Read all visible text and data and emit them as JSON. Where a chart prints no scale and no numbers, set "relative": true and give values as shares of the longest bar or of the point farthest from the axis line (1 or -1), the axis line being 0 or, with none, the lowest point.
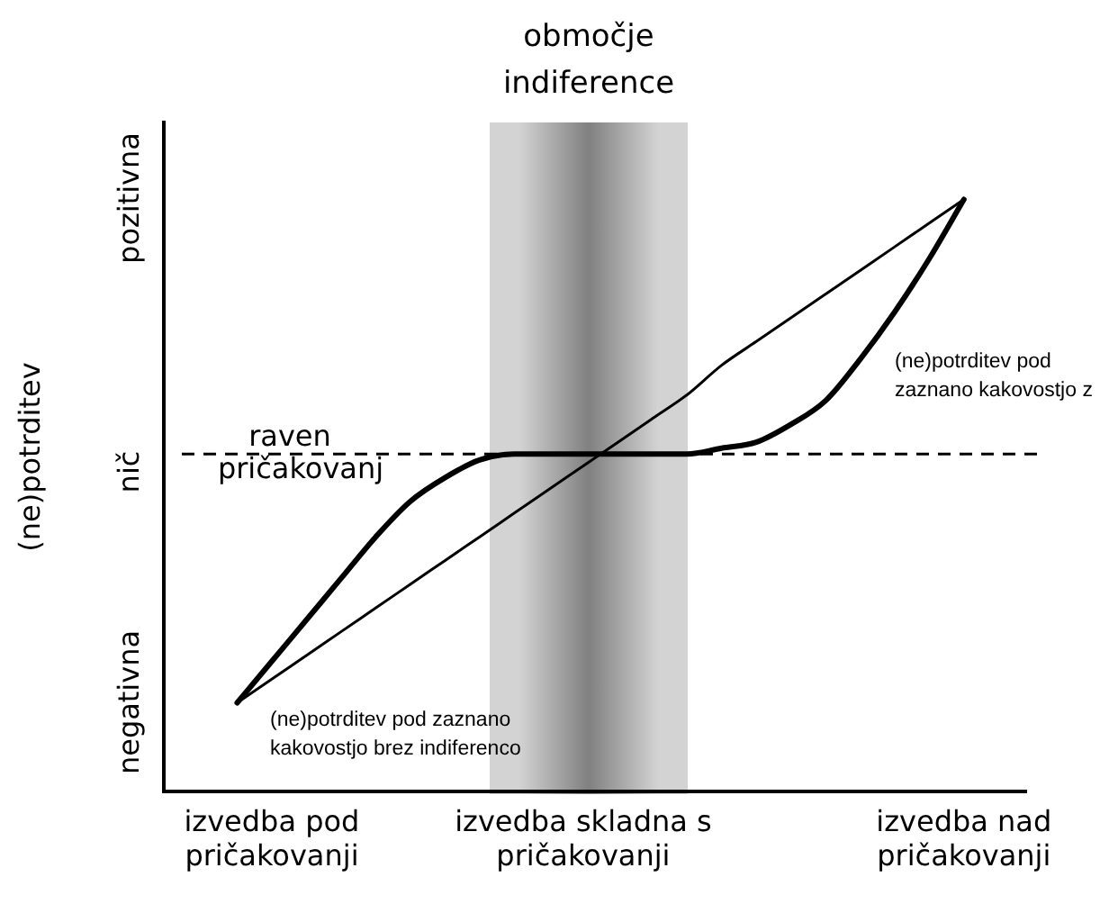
{
  "chart_data": {
    "type": "line",
    "ylabel": "(ne)potrditev",
    "relative": true,
    "categories": [
      null,
      "izvedba pod pričakovanji",
      null,
      null,
      null,
      null,
      null,
      null,
      null,
      null,
      "izvedba skladna s pričakovanji",
      null,
      null,
      null,
      null,
      null,
      null,
      null,
      null,
      null,
      null,
      "izvedba nad pričakovanji"
    ],
    "series": [
      {
        "color": "#000000",
        "values": [
          0.15,
          0.19,
          0.23,
          0.27,
          0.31,
          0.35,
          0.39,
          0.43,
          0.47,
          0.51,
          0.55,
          0.59,
          0.63,
          0.67,
          0.72,
          0.76,
          0.8,
          0.84,
          0.88,
          0.92,
          0.96,
          1.0
        ]
      },
      {
        "color": "#000000",
        "values": [
          0.15,
          0.22,
          0.29,
          0.36,
          0.43,
          0.49,
          0.53,
          0.56,
          0.57,
          0.57,
          0.57,
          0.57,
          0.57,
          0.57,
          0.58,
          0.59,
          0.62,
          0.66,
          0.73,
          0.81,
          0.9,
          1.0
        ]
      }
    ],
    "ref_lines": [
      {
        "axis": "y",
        "value": 0.57,
        "label": "raven pričakovanj",
        "line_style": "dashed",
        "color": "#000000"
      }
    ],
    "annotations": [
      "območje indiference",
      "(ne)potrditev pod zaznano kakovostjo z",
      "(ne)potrditev pod zaznano kakovostjo brez indiferenco",
      "pozitivna",
      "nič",
      "negativna"
    ],
    "grid": false,
    "legend": false,
    "marker": "none",
    "line_style": "solid"
  }
}
